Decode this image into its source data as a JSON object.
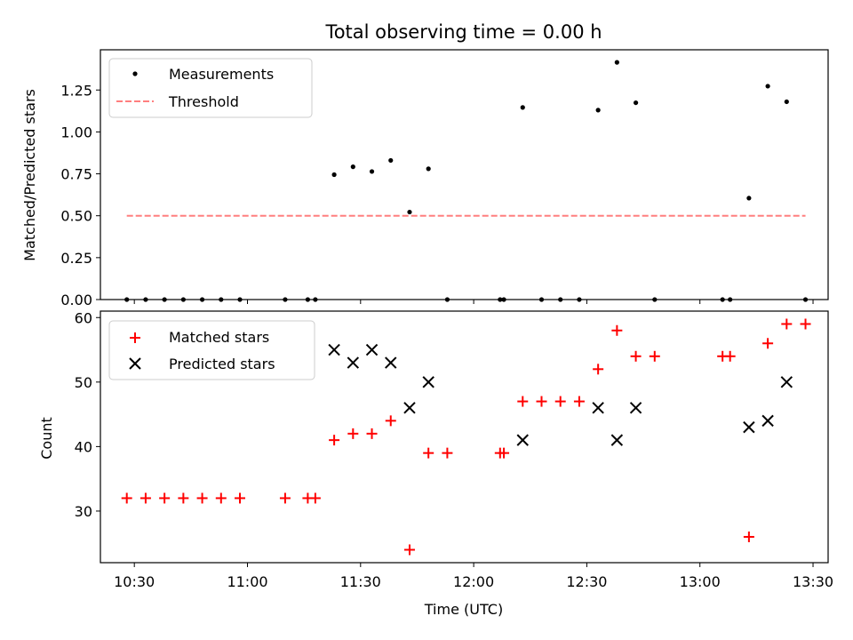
{
  "chart_data": [
    {
      "type": "scatter",
      "title": "Total observing time = 0.00 h",
      "xlabel": "",
      "ylabel": "Matched/Predicted stars",
      "xlim": [
        "10:21",
        "13:34"
      ],
      "ylim": [
        0,
        1.49
      ],
      "yticks": [
        0.0,
        0.25,
        0.5,
        0.75,
        1.0,
        1.25
      ],
      "ytick_labels": [
        "0.00",
        "0.25",
        "0.50",
        "0.75",
        "1.00",
        "1.25"
      ],
      "legend": "top-left",
      "series": [
        {
          "name": "Measurements",
          "color": "#000000",
          "marker": "dot",
          "points": [
            {
              "x": "10:28",
              "y": 0.0
            },
            {
              "x": "10:33",
              "y": 0.0
            },
            {
              "x": "10:38",
              "y": 0.0
            },
            {
              "x": "10:43",
              "y": 0.0
            },
            {
              "x": "10:48",
              "y": 0.0
            },
            {
              "x": "10:53",
              "y": 0.0
            },
            {
              "x": "10:58",
              "y": 0.0
            },
            {
              "x": "11:10",
              "y": 0.0
            },
            {
              "x": "11:16",
              "y": 0.0
            },
            {
              "x": "11:18",
              "y": 0.0
            },
            {
              "x": "11:23",
              "y": 0.745
            },
            {
              "x": "11:28",
              "y": 0.792
            },
            {
              "x": "11:33",
              "y": 0.764
            },
            {
              "x": "11:38",
              "y": 0.83
            },
            {
              "x": "11:43",
              "y": 0.522
            },
            {
              "x": "11:48",
              "y": 0.78
            },
            {
              "x": "11:53",
              "y": 0.0
            },
            {
              "x": "12:07",
              "y": 0.0
            },
            {
              "x": "12:08",
              "y": 0.0
            },
            {
              "x": "12:13",
              "y": 1.146
            },
            {
              "x": "12:18",
              "y": 0.0
            },
            {
              "x": "12:23",
              "y": 0.0
            },
            {
              "x": "12:28",
              "y": 0.0
            },
            {
              "x": "12:33",
              "y": 1.13
            },
            {
              "x": "12:38",
              "y": 1.415
            },
            {
              "x": "12:43",
              "y": 1.174
            },
            {
              "x": "12:48",
              "y": 0.0
            },
            {
              "x": "13:06",
              "y": 0.0
            },
            {
              "x": "13:08",
              "y": 0.0
            },
            {
              "x": "13:13",
              "y": 0.605
            },
            {
              "x": "13:18",
              "y": 1.273
            },
            {
              "x": "13:23",
              "y": 1.18
            },
            {
              "x": "13:28",
              "y": 0.0
            }
          ]
        },
        {
          "name": "Threshold",
          "color": "#ff7f7f",
          "marker": "dashed-line",
          "points": [
            {
              "x": "10:28",
              "y": 0.5
            },
            {
              "x": "13:28",
              "y": 0.5
            }
          ]
        }
      ]
    },
    {
      "type": "scatter",
      "xlabel": "Time (UTC)",
      "ylabel": "Count",
      "xlim": [
        "10:21",
        "13:34"
      ],
      "ylim": [
        22,
        61
      ],
      "xticks": [
        "10:30",
        "11:00",
        "11:30",
        "12:00",
        "12:30",
        "13:00",
        "13:30"
      ],
      "yticks": [
        30,
        40,
        50,
        60
      ],
      "ytick_labels": [
        "30",
        "40",
        "50",
        "60"
      ],
      "legend": "top-left",
      "series": [
        {
          "name": "Matched stars",
          "color": "#ff0000",
          "marker": "plus",
          "points": [
            {
              "x": "10:28",
              "y": 32
            },
            {
              "x": "10:33",
              "y": 32
            },
            {
              "x": "10:38",
              "y": 32
            },
            {
              "x": "10:43",
              "y": 32
            },
            {
              "x": "10:48",
              "y": 32
            },
            {
              "x": "10:53",
              "y": 32
            },
            {
              "x": "10:58",
              "y": 32
            },
            {
              "x": "11:10",
              "y": 32
            },
            {
              "x": "11:16",
              "y": 32
            },
            {
              "x": "11:18",
              "y": 32
            },
            {
              "x": "11:23",
              "y": 41
            },
            {
              "x": "11:28",
              "y": 42
            },
            {
              "x": "11:33",
              "y": 42
            },
            {
              "x": "11:38",
              "y": 44
            },
            {
              "x": "11:43",
              "y": 24
            },
            {
              "x": "11:48",
              "y": 39
            },
            {
              "x": "11:53",
              "y": 39
            },
            {
              "x": "12:07",
              "y": 39
            },
            {
              "x": "12:08",
              "y": 39
            },
            {
              "x": "12:13",
              "y": 47
            },
            {
              "x": "12:18",
              "y": 47
            },
            {
              "x": "12:23",
              "y": 47
            },
            {
              "x": "12:28",
              "y": 47
            },
            {
              "x": "12:33",
              "y": 52
            },
            {
              "x": "12:38",
              "y": 58
            },
            {
              "x": "12:43",
              "y": 54
            },
            {
              "x": "12:48",
              "y": 54
            },
            {
              "x": "13:06",
              "y": 54
            },
            {
              "x": "13:08",
              "y": 54
            },
            {
              "x": "13:13",
              "y": 26
            },
            {
              "x": "13:18",
              "y": 56
            },
            {
              "x": "13:23",
              "y": 59
            },
            {
              "x": "13:28",
              "y": 59
            }
          ]
        },
        {
          "name": "Predicted stars",
          "color": "#000000",
          "marker": "x",
          "points": [
            {
              "x": "11:23",
              "y": 55
            },
            {
              "x": "11:28",
              "y": 53
            },
            {
              "x": "11:33",
              "y": 55
            },
            {
              "x": "11:38",
              "y": 53
            },
            {
              "x": "11:43",
              "y": 46
            },
            {
              "x": "11:48",
              "y": 50
            },
            {
              "x": "12:13",
              "y": 41
            },
            {
              "x": "12:33",
              "y": 46
            },
            {
              "x": "12:38",
              "y": 41
            },
            {
              "x": "12:43",
              "y": 46
            },
            {
              "x": "13:13",
              "y": 43
            },
            {
              "x": "13:18",
              "y": 44
            },
            {
              "x": "13:23",
              "y": 50
            }
          ]
        }
      ]
    }
  ]
}
